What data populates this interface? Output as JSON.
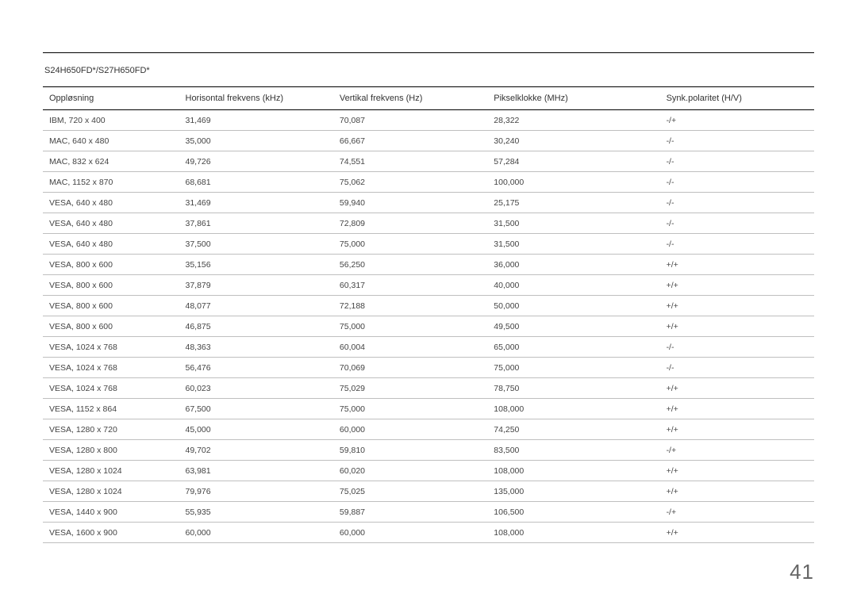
{
  "page": {
    "model_title": "S24H650FD*/S27H650FD*",
    "page_number": "41"
  },
  "table": {
    "columns": [
      {
        "label": "Oppløsning",
        "width": "17.5%"
      },
      {
        "label": "Horisontal frekvens (kHz)",
        "width": "20%"
      },
      {
        "label": "Vertikal frekvens (Hz)",
        "width": "20%"
      },
      {
        "label": "Pikselklokke (MHz)",
        "width": "22.5%"
      },
      {
        "label": "Synk.polaritet (H/V)",
        "width": "20%"
      }
    ],
    "rows": [
      [
        "IBM, 720 x 400",
        "31,469",
        "70,087",
        "28,322",
        "-/+"
      ],
      [
        "MAC, 640 x 480",
        "35,000",
        "66,667",
        "30,240",
        "-/-"
      ],
      [
        "MAC, 832 x 624",
        "49,726",
        "74,551",
        "57,284",
        "-/-"
      ],
      [
        "MAC, 1152 x 870",
        "68,681",
        "75,062",
        "100,000",
        "-/-"
      ],
      [
        "VESA, 640 x 480",
        "31,469",
        "59,940",
        "25,175",
        "-/-"
      ],
      [
        "VESA, 640 x 480",
        "37,861",
        "72,809",
        "31,500",
        "-/-"
      ],
      [
        "VESA, 640 x 480",
        "37,500",
        "75,000",
        "31,500",
        "-/-"
      ],
      [
        "VESA, 800 x 600",
        "35,156",
        "56,250",
        "36,000",
        "+/+"
      ],
      [
        "VESA, 800 x 600",
        "37,879",
        "60,317",
        "40,000",
        "+/+"
      ],
      [
        "VESA, 800 x 600",
        "48,077",
        "72,188",
        "50,000",
        "+/+"
      ],
      [
        "VESA, 800 x 600",
        "46,875",
        "75,000",
        "49,500",
        "+/+"
      ],
      [
        "VESA, 1024 x 768",
        "48,363",
        "60,004",
        "65,000",
        "-/-"
      ],
      [
        "VESA, 1024 x 768",
        "56,476",
        "70,069",
        "75,000",
        "-/-"
      ],
      [
        "VESA, 1024 x 768",
        "60,023",
        "75,029",
        "78,750",
        "+/+"
      ],
      [
        "VESA, 1152 x 864",
        "67,500",
        "75,000",
        "108,000",
        "+/+"
      ],
      [
        "VESA, 1280 x 720",
        "45,000",
        "60,000",
        "74,250",
        "+/+"
      ],
      [
        "VESA, 1280 x 800",
        "49,702",
        "59,810",
        "83,500",
        "-/+"
      ],
      [
        "VESA, 1280 x 1024",
        "63,981",
        "60,020",
        "108,000",
        "+/+"
      ],
      [
        "VESA, 1280 x 1024",
        "79,976",
        "75,025",
        "135,000",
        "+/+"
      ],
      [
        "VESA, 1440 x 900",
        "55,935",
        "59,887",
        "106,500",
        "-/+"
      ],
      [
        "VESA, 1600 x 900",
        "60,000",
        "60,000",
        "108,000",
        "+/+"
      ]
    ]
  }
}
